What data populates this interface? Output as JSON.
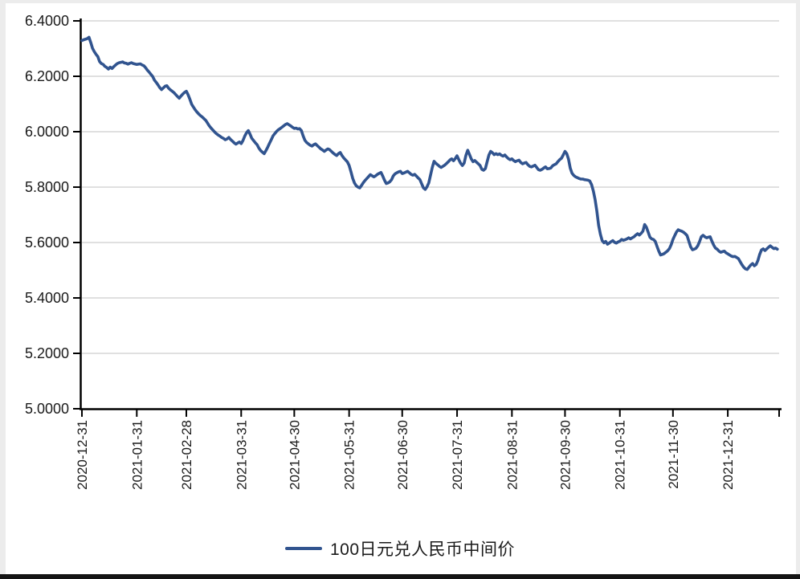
{
  "colors": {
    "line": "#31548F",
    "grid": "#D6D6D6",
    "axis": "#000000",
    "text": "#1A1A1A",
    "background": "#FFFFFF",
    "frame_edge": "#ECECEC",
    "bottom_bar": "#141414"
  },
  "chart_data": {
    "type": "line",
    "series_name": "100日元兑人民币中间价",
    "legend_position": "bottom",
    "grid": true,
    "x_unit": "days since 2020-12-31",
    "xlim": [
      0,
      394
    ],
    "ylim": [
      5.0,
      6.4
    ],
    "y_ticks": [
      {
        "value": 6.4,
        "label": "6.4000"
      },
      {
        "value": 6.2,
        "label": "6.2000"
      },
      {
        "value": 6.0,
        "label": "6.0000"
      },
      {
        "value": 5.8,
        "label": "5.8000"
      },
      {
        "value": 5.6,
        "label": "5.6000"
      },
      {
        "value": 5.4,
        "label": "5.4000"
      },
      {
        "value": 5.2,
        "label": "5.2000"
      },
      {
        "value": 5.0,
        "label": "5.0000"
      }
    ],
    "x_ticks": [
      {
        "day": 0,
        "label": "2020-12-31"
      },
      {
        "day": 31,
        "label": "2021-01-31"
      },
      {
        "day": 59,
        "label": "2021-02-28"
      },
      {
        "day": 90,
        "label": "2021-03-31"
      },
      {
        "day": 120,
        "label": "2021-04-30"
      },
      {
        "day": 151,
        "label": "2021-05-31"
      },
      {
        "day": 181,
        "label": "2021-06-30"
      },
      {
        "day": 212,
        "label": "2021-07-31"
      },
      {
        "day": 243,
        "label": "2021-08-31"
      },
      {
        "day": 273,
        "label": "2021-09-30"
      },
      {
        "day": 304,
        "label": "2021-10-31"
      },
      {
        "day": 334,
        "label": "2021-11-30"
      },
      {
        "day": 365,
        "label": "2021-12-31"
      },
      {
        "day": 394,
        "label": ""
      }
    ],
    "points": [
      [
        0,
        6.329
      ],
      [
        1,
        6.332
      ],
      [
        3,
        6.336
      ],
      [
        4,
        6.341
      ],
      [
        5,
        6.322
      ],
      [
        6,
        6.301
      ],
      [
        7,
        6.289
      ],
      [
        8,
        6.279
      ],
      [
        9,
        6.271
      ],
      [
        10,
        6.253
      ],
      [
        11,
        6.246
      ],
      [
        12,
        6.243
      ],
      [
        13,
        6.236
      ],
      [
        14,
        6.232
      ],
      [
        15,
        6.226
      ],
      [
        16,
        6.233
      ],
      [
        17,
        6.228
      ],
      [
        18,
        6.235
      ],
      [
        19,
        6.241
      ],
      [
        20,
        6.246
      ],
      [
        21,
        6.249
      ],
      [
        23,
        6.252
      ],
      [
        24,
        6.248
      ],
      [
        25,
        6.247
      ],
      [
        26,
        6.244
      ],
      [
        27,
        6.247
      ],
      [
        28,
        6.249
      ],
      [
        29,
        6.246
      ],
      [
        31,
        6.243
      ],
      [
        33,
        6.245
      ],
      [
        34,
        6.241
      ],
      [
        35,
        6.238
      ],
      [
        36,
        6.231
      ],
      [
        37,
        6.222
      ],
      [
        38,
        6.215
      ],
      [
        39,
        6.207
      ],
      [
        40,
        6.199
      ],
      [
        41,
        6.186
      ],
      [
        42,
        6.178
      ],
      [
        43,
        6.169
      ],
      [
        44,
        6.159
      ],
      [
        45,
        6.152
      ],
      [
        46,
        6.158
      ],
      [
        47,
        6.164
      ],
      [
        48,
        6.166
      ],
      [
        49,
        6.157
      ],
      [
        50,
        6.151
      ],
      [
        51,
        6.146
      ],
      [
        52,
        6.141
      ],
      [
        53,
        6.134
      ],
      [
        54,
        6.127
      ],
      [
        55,
        6.121
      ],
      [
        56,
        6.129
      ],
      [
        57,
        6.136
      ],
      [
        58,
        6.142
      ],
      [
        59,
        6.146
      ],
      [
        60,
        6.133
      ],
      [
        61,
        6.117
      ],
      [
        62,
        6.099
      ],
      [
        63,
        6.089
      ],
      [
        64,
        6.079
      ],
      [
        65,
        6.071
      ],
      [
        66,
        6.064
      ],
      [
        67,
        6.058
      ],
      [
        68,
        6.053
      ],
      [
        69,
        6.047
      ],
      [
        70,
        6.041
      ],
      [
        71,
        6.031
      ],
      [
        72,
        6.021
      ],
      [
        73,
        6.013
      ],
      [
        74,
        6.006
      ],
      [
        75,
        5.999
      ],
      [
        76,
        5.993
      ],
      [
        77,
        5.988
      ],
      [
        78,
        5.984
      ],
      [
        79,
        5.979
      ],
      [
        80,
        5.976
      ],
      [
        81,
        5.971
      ],
      [
        82,
        5.974
      ],
      [
        83,
        5.979
      ],
      [
        84,
        5.972
      ],
      [
        85,
        5.966
      ],
      [
        86,
        5.96
      ],
      [
        87,
        5.955
      ],
      [
        88,
        5.959
      ],
      [
        89,
        5.963
      ],
      [
        90,
        5.957
      ],
      [
        91,
        5.968
      ],
      [
        92,
        5.984
      ],
      [
        93,
        5.996
      ],
      [
        94,
        6.004
      ],
      [
        95,
        5.991
      ],
      [
        96,
        5.976
      ],
      [
        97,
        5.968
      ],
      [
        98,
        5.96
      ],
      [
        99,
        5.953
      ],
      [
        100,
        5.941
      ],
      [
        101,
        5.932
      ],
      [
        102,
        5.926
      ],
      [
        103,
        5.921
      ],
      [
        104,
        5.932
      ],
      [
        105,
        5.944
      ],
      [
        106,
        5.958
      ],
      [
        107,
        5.971
      ],
      [
        108,
        5.985
      ],
      [
        109,
        5.993
      ],
      [
        110,
        6.001
      ],
      [
        111,
        6.007
      ],
      [
        112,
        6.011
      ],
      [
        113,
        6.016
      ],
      [
        114,
        6.021
      ],
      [
        115,
        6.026
      ],
      [
        116,
        6.029
      ],
      [
        117,
        6.025
      ],
      [
        118,
        6.021
      ],
      [
        119,
        6.016
      ],
      [
        120,
        6.012
      ],
      [
        121,
        6.013
      ],
      [
        122,
        6.01
      ],
      [
        123,
        6.011
      ],
      [
        124,
        6.004
      ],
      [
        125,
        5.985
      ],
      [
        126,
        5.969
      ],
      [
        127,
        5.961
      ],
      [
        128,
        5.956
      ],
      [
        129,
        5.951
      ],
      [
        130,
        5.948
      ],
      [
        131,
        5.953
      ],
      [
        132,
        5.956
      ],
      [
        133,
        5.95
      ],
      [
        134,
        5.944
      ],
      [
        135,
        5.938
      ],
      [
        136,
        5.934
      ],
      [
        137,
        5.929
      ],
      [
        138,
        5.934
      ],
      [
        139,
        5.938
      ],
      [
        140,
        5.935
      ],
      [
        141,
        5.929
      ],
      [
        142,
        5.923
      ],
      [
        143,
        5.918
      ],
      [
        144,
        5.914
      ],
      [
        145,
        5.921
      ],
      [
        146,
        5.925
      ],
      [
        147,
        5.914
      ],
      [
        148,
        5.905
      ],
      [
        149,
        5.898
      ],
      [
        150,
        5.891
      ],
      [
        151,
        5.878
      ],
      [
        152,
        5.856
      ],
      [
        153,
        5.832
      ],
      [
        154,
        5.815
      ],
      [
        155,
        5.805
      ],
      [
        156,
        5.8
      ],
      [
        157,
        5.797
      ],
      [
        158,
        5.806
      ],
      [
        159,
        5.816
      ],
      [
        160,
        5.824
      ],
      [
        161,
        5.831
      ],
      [
        162,
        5.838
      ],
      [
        163,
        5.845
      ],
      [
        164,
        5.841
      ],
      [
        165,
        5.837
      ],
      [
        166,
        5.841
      ],
      [
        167,
        5.846
      ],
      [
        168,
        5.85
      ],
      [
        169,
        5.853
      ],
      [
        170,
        5.84
      ],
      [
        171,
        5.825
      ],
      [
        172,
        5.813
      ],
      [
        173,
        5.815
      ],
      [
        174,
        5.819
      ],
      [
        175,
        5.827
      ],
      [
        176,
        5.841
      ],
      [
        177,
        5.848
      ],
      [
        178,
        5.852
      ],
      [
        179,
        5.855
      ],
      [
        180,
        5.857
      ],
      [
        181,
        5.849
      ],
      [
        182,
        5.851
      ],
      [
        183,
        5.854
      ],
      [
        184,
        5.857
      ],
      [
        185,
        5.852
      ],
      [
        186,
        5.846
      ],
      [
        187,
        5.843
      ],
      [
        188,
        5.846
      ],
      [
        189,
        5.84
      ],
      [
        190,
        5.833
      ],
      [
        191,
        5.827
      ],
      [
        192,
        5.812
      ],
      [
        193,
        5.797
      ],
      [
        194,
        5.792
      ],
      [
        195,
        5.801
      ],
      [
        196,
        5.815
      ],
      [
        197,
        5.843
      ],
      [
        198,
        5.871
      ],
      [
        199,
        5.893
      ],
      [
        200,
        5.886
      ],
      [
        201,
        5.881
      ],
      [
        202,
        5.875
      ],
      [
        203,
        5.871
      ],
      [
        204,
        5.875
      ],
      [
        205,
        5.879
      ],
      [
        206,
        5.885
      ],
      [
        207,
        5.891
      ],
      [
        208,
        5.898
      ],
      [
        209,
        5.902
      ],
      [
        210,
        5.895
      ],
      [
        211,
        5.903
      ],
      [
        212,
        5.913
      ],
      [
        213,
        5.899
      ],
      [
        214,
        5.886
      ],
      [
        215,
        5.878
      ],
      [
        216,
        5.887
      ],
      [
        217,
        5.915
      ],
      [
        218,
        5.933
      ],
      [
        219,
        5.918
      ],
      [
        220,
        5.902
      ],
      [
        221,
        5.892
      ],
      [
        222,
        5.896
      ],
      [
        223,
        5.89
      ],
      [
        224,
        5.884
      ],
      [
        225,
        5.878
      ],
      [
        226,
        5.864
      ],
      [
        227,
        5.861
      ],
      [
        228,
        5.867
      ],
      [
        229,
        5.892
      ],
      [
        230,
        5.916
      ],
      [
        231,
        5.929
      ],
      [
        232,
        5.924
      ],
      [
        233,
        5.917
      ],
      [
        234,
        5.921
      ],
      [
        235,
        5.917
      ],
      [
        236,
        5.92
      ],
      [
        237,
        5.915
      ],
      [
        238,
        5.912
      ],
      [
        239,
        5.916
      ],
      [
        240,
        5.909
      ],
      [
        241,
        5.903
      ],
      [
        242,
        5.899
      ],
      [
        243,
        5.902
      ],
      [
        244,
        5.896
      ],
      [
        245,
        5.892
      ],
      [
        246,
        5.895
      ],
      [
        247,
        5.897
      ],
      [
        248,
        5.889
      ],
      [
        249,
        5.884
      ],
      [
        250,
        5.887
      ],
      [
        251,
        5.889
      ],
      [
        252,
        5.881
      ],
      [
        253,
        5.875
      ],
      [
        254,
        5.873
      ],
      [
        255,
        5.876
      ],
      [
        256,
        5.879
      ],
      [
        257,
        5.871
      ],
      [
        258,
        5.863
      ],
      [
        259,
        5.861
      ],
      [
        260,
        5.864
      ],
      [
        261,
        5.869
      ],
      [
        262,
        5.873
      ],
      [
        263,
        5.866
      ],
      [
        264,
        5.867
      ],
      [
        265,
        5.869
      ],
      [
        266,
        5.877
      ],
      [
        267,
        5.881
      ],
      [
        268,
        5.884
      ],
      [
        269,
        5.892
      ],
      [
        270,
        5.899
      ],
      [
        271,
        5.904
      ],
      [
        272,
        5.916
      ],
      [
        273,
        5.929
      ],
      [
        274,
        5.921
      ],
      [
        275,
        5.901
      ],
      [
        276,
        5.868
      ],
      [
        277,
        5.85
      ],
      [
        278,
        5.842
      ],
      [
        279,
        5.837
      ],
      [
        280,
        5.834
      ],
      [
        281,
        5.831
      ],
      [
        282,
        5.829
      ],
      [
        283,
        5.829
      ],
      [
        284,
        5.827
      ],
      [
        285,
        5.826
      ],
      [
        286,
        5.825
      ],
      [
        287,
        5.822
      ],
      [
        288,
        5.809
      ],
      [
        289,
        5.786
      ],
      [
        290,
        5.755
      ],
      [
        291,
        5.713
      ],
      [
        292,
        5.662
      ],
      [
        293,
        5.63
      ],
      [
        294,
        5.607
      ],
      [
        295,
        5.599
      ],
      [
        296,
        5.604
      ],
      [
        297,
        5.594
      ],
      [
        298,
        5.598
      ],
      [
        299,
        5.603
      ],
      [
        300,
        5.607
      ],
      [
        301,
        5.601
      ],
      [
        302,
        5.598
      ],
      [
        303,
        5.602
      ],
      [
        304,
        5.605
      ],
      [
        305,
        5.611
      ],
      [
        306,
        5.608
      ],
      [
        307,
        5.61
      ],
      [
        308,
        5.613
      ],
      [
        309,
        5.617
      ],
      [
        310,
        5.613
      ],
      [
        311,
        5.617
      ],
      [
        312,
        5.621
      ],
      [
        313,
        5.627
      ],
      [
        314,
        5.632
      ],
      [
        315,
        5.627
      ],
      [
        316,
        5.633
      ],
      [
        317,
        5.641
      ],
      [
        318,
        5.665
      ],
      [
        319,
        5.655
      ],
      [
        320,
        5.637
      ],
      [
        321,
        5.619
      ],
      [
        322,
        5.613
      ],
      [
        323,
        5.611
      ],
      [
        324,
        5.604
      ],
      [
        325,
        5.586
      ],
      [
        326,
        5.569
      ],
      [
        327,
        5.555
      ],
      [
        328,
        5.557
      ],
      [
        329,
        5.56
      ],
      [
        330,
        5.565
      ],
      [
        331,
        5.57
      ],
      [
        332,
        5.578
      ],
      [
        333,
        5.592
      ],
      [
        334,
        5.611
      ],
      [
        335,
        5.625
      ],
      [
        336,
        5.638
      ],
      [
        337,
        5.646
      ],
      [
        338,
        5.643
      ],
      [
        339,
        5.641
      ],
      [
        340,
        5.637
      ],
      [
        341,
        5.632
      ],
      [
        342,
        5.625
      ],
      [
        343,
        5.605
      ],
      [
        344,
        5.585
      ],
      [
        345,
        5.574
      ],
      [
        346,
        5.576
      ],
      [
        347,
        5.579
      ],
      [
        348,
        5.588
      ],
      [
        349,
        5.603
      ],
      [
        350,
        5.621
      ],
      [
        351,
        5.626
      ],
      [
        352,
        5.621
      ],
      [
        353,
        5.617
      ],
      [
        354,
        5.619
      ],
      [
        355,
        5.621
      ],
      [
        356,
        5.605
      ],
      [
        357,
        5.591
      ],
      [
        358,
        5.58
      ],
      [
        359,
        5.576
      ],
      [
        360,
        5.569
      ],
      [
        361,
        5.565
      ],
      [
        362,
        5.567
      ],
      [
        363,
        5.569
      ],
      [
        364,
        5.563
      ],
      [
        365,
        5.559
      ],
      [
        366,
        5.555
      ],
      [
        367,
        5.551
      ],
      [
        368,
        5.549
      ],
      [
        369,
        5.55
      ],
      [
        370,
        5.546
      ],
      [
        371,
        5.542
      ],
      [
        372,
        5.531
      ],
      [
        373,
        5.52
      ],
      [
        374,
        5.511
      ],
      [
        375,
        5.505
      ],
      [
        376,
        5.503
      ],
      [
        377,
        5.511
      ],
      [
        378,
        5.519
      ],
      [
        379,
        5.524
      ],
      [
        380,
        5.516
      ],
      [
        381,
        5.521
      ],
      [
        382,
        5.535
      ],
      [
        383,
        5.557
      ],
      [
        384,
        5.573
      ],
      [
        385,
        5.577
      ],
      [
        386,
        5.571
      ],
      [
        387,
        5.577
      ],
      [
        388,
        5.583
      ],
      [
        389,
        5.588
      ],
      [
        390,
        5.583
      ],
      [
        391,
        5.578
      ],
      [
        392,
        5.58
      ],
      [
        393,
        5.576
      ]
    ]
  },
  "legend": {
    "label": "100日元兑人民币中间价"
  }
}
